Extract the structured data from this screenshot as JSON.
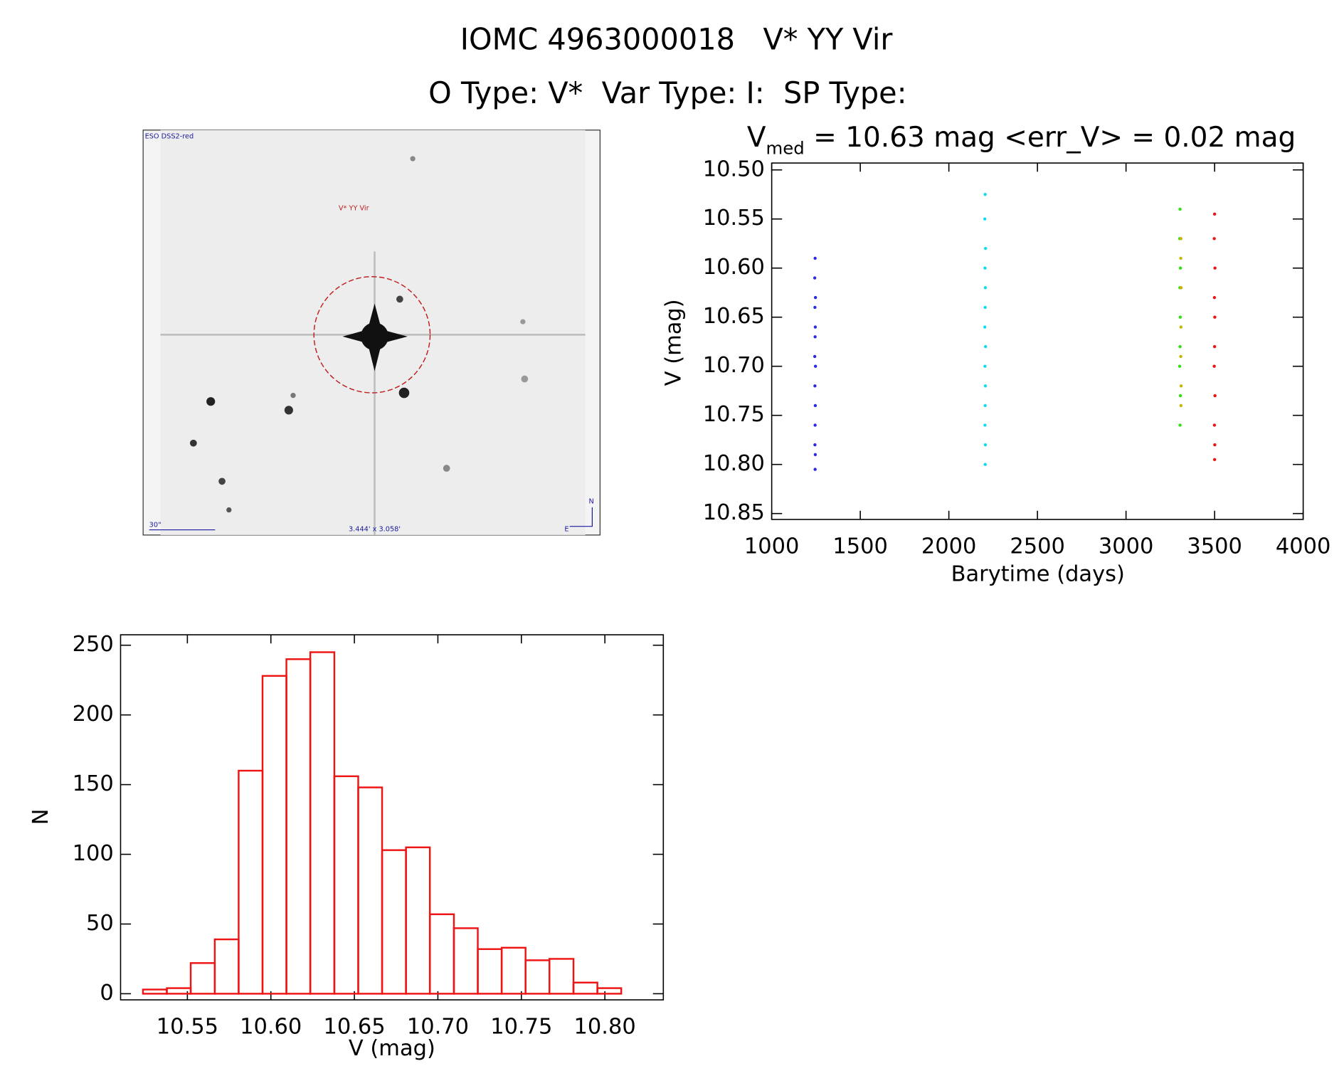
{
  "header": {
    "title": "IOMC 4963000018   V* YY Vir",
    "subtitle": "O Type: V*  Var Type: I:  SP Type:"
  },
  "image": {
    "survey": "ESO DSS2-red",
    "target": "V* YY Vir",
    "scale": "30\"",
    "size": "3.444' x 3.058'",
    "north": "N",
    "east": "E"
  },
  "chart_data": [
    {
      "type": "scatter",
      "title": {
        "text": "V",
        "sub": "med",
        "rest": " = 10.63 mag <err_V> = 0.02 mag"
      },
      "x_label": "Barytime (days)",
      "y_label": "V (mag)",
      "xlim": [
        1000,
        4000
      ],
      "xticks": [
        1000,
        1500,
        2000,
        2500,
        3000,
        3500,
        4000
      ],
      "ylim": [
        10.856,
        10.493
      ],
      "yticks": [
        {
          "value": 10.5,
          "label": "10.50"
        },
        {
          "value": 10.55,
          "label": "10.55"
        },
        {
          "value": 10.6,
          "label": "10.60"
        },
        {
          "value": 10.65,
          "label": "10.65"
        },
        {
          "value": 10.7,
          "label": "10.70"
        },
        {
          "value": 10.75,
          "label": "10.75"
        },
        {
          "value": 10.8,
          "label": "10.80"
        },
        {
          "value": 10.85,
          "label": "10.85"
        }
      ],
      "series": [
        {
          "color": "#2a2ae0",
          "x": [
            1245,
            1243,
            1247,
            1244,
            1246,
            1245,
            1243,
            1247,
            1244,
            1246,
            1245,
            1244,
            1246,
            1245
          ],
          "values": [
            10.59,
            10.61,
            10.63,
            10.64,
            10.66,
            10.67,
            10.69,
            10.7,
            10.72,
            10.74,
            10.76,
            10.78,
            10.79,
            10.805
          ]
        },
        {
          "color": "#10dcf0",
          "x": [
            2205,
            2203,
            2207,
            2204,
            2206,
            2205,
            2203,
            2207,
            2204,
            2206,
            2205,
            2204,
            2206,
            2205
          ],
          "values": [
            10.525,
            10.55,
            10.58,
            10.6,
            10.62,
            10.64,
            10.66,
            10.68,
            10.7,
            10.72,
            10.74,
            10.76,
            10.78,
            10.8
          ]
        },
        {
          "color": "#30e010",
          "x": [
            3305,
            3303,
            3307,
            3304,
            3306,
            3305,
            3303,
            3307,
            3305
          ],
          "values": [
            10.54,
            10.57,
            10.6,
            10.62,
            10.65,
            10.68,
            10.7,
            10.73,
            10.76
          ]
        },
        {
          "color": "#c8b400",
          "x": [
            3310,
            3309,
            3311,
            3310,
            3309,
            3311,
            3310
          ],
          "values": [
            10.57,
            10.59,
            10.62,
            10.66,
            10.69,
            10.72,
            10.74
          ]
        },
        {
          "color": "#ee1414",
          "x": [
            3500,
            3498,
            3502,
            3499,
            3501,
            3500,
            3498,
            3502,
            3499,
            3501,
            3500
          ],
          "values": [
            10.545,
            10.57,
            10.6,
            10.63,
            10.65,
            10.68,
            10.7,
            10.73,
            10.76,
            10.78,
            10.795
          ]
        }
      ]
    },
    {
      "type": "histogram",
      "x_label": "V (mag)",
      "y_label": "N",
      "color": "#ee1414",
      "xlim": [
        10.51,
        10.835
      ],
      "xticks": [
        10.55,
        {
          "value": 10.6,
          "label": "10.60"
        },
        10.65,
        {
          "value": 10.7,
          "label": "10.70"
        },
        10.75,
        {
          "value": 10.8,
          "label": "10.80"
        }
      ],
      "ylim": [
        -4.4,
        257.5
      ],
      "yticks": [
        0,
        50,
        100,
        150,
        200,
        250
      ],
      "bins": [
        10.5234,
        10.5377,
        10.552,
        10.5664,
        10.5807,
        10.595,
        10.6093,
        10.6236,
        10.638,
        10.6523,
        10.6666,
        10.6809,
        10.6952,
        10.7096,
        10.7239,
        10.7382,
        10.7525,
        10.7668,
        10.7812,
        10.7955,
        10.8098
      ],
      "values": [
        3,
        4,
        22,
        39,
        160,
        228,
        240,
        245,
        156,
        148,
        103,
        105,
        57,
        47,
        32,
        33,
        24,
        25,
        8,
        4
      ]
    }
  ]
}
